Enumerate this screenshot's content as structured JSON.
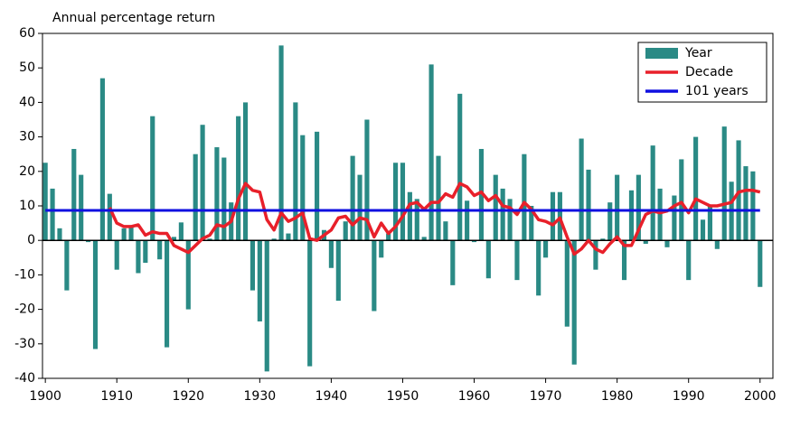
{
  "chart_data": {
    "type": "bar_line",
    "ylabel": "Annual percentage return",
    "x": [
      1900,
      1901,
      1902,
      1903,
      1904,
      1905,
      1906,
      1907,
      1908,
      1909,
      1910,
      1911,
      1912,
      1913,
      1914,
      1915,
      1916,
      1917,
      1918,
      1919,
      1920,
      1921,
      1922,
      1923,
      1924,
      1925,
      1926,
      1927,
      1928,
      1929,
      1930,
      1931,
      1932,
      1933,
      1934,
      1935,
      1936,
      1937,
      1938,
      1939,
      1940,
      1941,
      1942,
      1943,
      1944,
      1945,
      1946,
      1947,
      1948,
      1949,
      1950,
      1951,
      1952,
      1953,
      1954,
      1955,
      1956,
      1957,
      1958,
      1959,
      1960,
      1961,
      1962,
      1963,
      1964,
      1965,
      1966,
      1967,
      1968,
      1969,
      1970,
      1971,
      1972,
      1973,
      1974,
      1975,
      1976,
      1977,
      1978,
      1979,
      1980,
      1981,
      1982,
      1983,
      1984,
      1985,
      1986,
      1987,
      1988,
      1989,
      1990,
      1991,
      1992,
      1993,
      1994,
      1995,
      1996,
      1997,
      1998,
      1999,
      2000
    ],
    "series": [
      {
        "name": "Year",
        "kind": "bar",
        "color": "#2a8a85",
        "values": [
          22.5,
          15,
          3.5,
          -14.5,
          26.5,
          19,
          -0.5,
          -31.5,
          47,
          13.5,
          -8.5,
          3.5,
          4,
          -9.5,
          -6.5,
          36,
          -5.5,
          -31,
          1,
          5.2,
          -20,
          25,
          33.5,
          0.5,
          27,
          24,
          11,
          36,
          40,
          -14.5,
          -23.5,
          -38,
          0.5,
          56.5,
          2,
          40,
          30.5,
          -36.5,
          31.5,
          3,
          -8,
          -17.5,
          5.5,
          24.5,
          19,
          35,
          -20.5,
          -5,
          2,
          22.5,
          22.5,
          14,
          12,
          1,
          51,
          24.5,
          5.5,
          -13,
          42.5,
          11.5,
          -0.5,
          26.5,
          -11,
          19,
          15,
          12,
          -11.5,
          25,
          10,
          -16,
          -5,
          14,
          14,
          -25,
          -36,
          29.5,
          20.5,
          -8.5,
          0.5,
          11,
          19,
          -11.5,
          14.5,
          19,
          -1,
          27.5,
          15,
          -2,
          13,
          23.5,
          -11.5,
          30,
          6,
          10,
          -2.5,
          33,
          17,
          29,
          21.5,
          20,
          -13.5
        ]
      },
      {
        "name": "Decade",
        "kind": "line",
        "color": "#e8202a",
        "values": [
          null,
          null,
          null,
          null,
          null,
          null,
          null,
          null,
          null,
          9.5,
          5,
          4,
          4,
          4.5,
          1.5,
          2.5,
          2,
          2,
          -1.5,
          -2.5,
          -3.5,
          -1.5,
          0.5,
          1.5,
          4.5,
          4,
          5.5,
          12,
          16.5,
          14.5,
          14,
          6,
          3,
          8,
          5.5,
          6.5,
          8,
          0.5,
          0,
          1.5,
          3,
          6.5,
          7,
          4.5,
          6.5,
          6,
          1,
          5,
          2,
          4,
          7,
          10.5,
          11,
          9,
          11,
          11,
          13.5,
          12.5,
          16.5,
          15.5,
          13,
          14,
          11.5,
          13,
          10,
          9.5,
          7.5,
          11,
          9,
          6,
          5.5,
          4.5,
          6.5,
          1,
          -4,
          -2.5,
          0,
          -2.5,
          -3.5,
          -1,
          1,
          -1.5,
          -1.5,
          3,
          7.5,
          8.5,
          8,
          8.5,
          10,
          11,
          8,
          12,
          11,
          10,
          10,
          10.5,
          11,
          14,
          14.5,
          14.5,
          14
        ]
      },
      {
        "name": "101 years",
        "kind": "line",
        "color": "#1010e0",
        "values": [
          8.7,
          8.7,
          8.7,
          8.7,
          8.7,
          8.7,
          8.7,
          8.7,
          8.7,
          8.7,
          8.7,
          8.7,
          8.7,
          8.7,
          8.7,
          8.7,
          8.7,
          8.7,
          8.7,
          8.7,
          8.7,
          8.7,
          8.7,
          8.7,
          8.7,
          8.7,
          8.7,
          8.7,
          8.7,
          8.7,
          8.7,
          8.7,
          8.7,
          8.7,
          8.7,
          8.7,
          8.7,
          8.7,
          8.7,
          8.7,
          8.7,
          8.7,
          8.7,
          8.7,
          8.7,
          8.7,
          8.7,
          8.7,
          8.7,
          8.7,
          8.7,
          8.7,
          8.7,
          8.7,
          8.7,
          8.7,
          8.7,
          8.7,
          8.7,
          8.7,
          8.7,
          8.7,
          8.7,
          8.7,
          8.7,
          8.7,
          8.7,
          8.7,
          8.7,
          8.7,
          8.7,
          8.7,
          8.7,
          8.7,
          8.7,
          8.7,
          8.7,
          8.7,
          8.7,
          8.7,
          8.7,
          8.7,
          8.7,
          8.7,
          8.7,
          8.7,
          8.7,
          8.7,
          8.7,
          8.7,
          8.7,
          8.7,
          8.7,
          8.7,
          8.7,
          8.7,
          8.7,
          8.7,
          8.7,
          8.7,
          8.7
        ]
      }
    ],
    "xlim": [
      1899.6,
      2001.8
    ],
    "xticks": [
      1900,
      1910,
      1920,
      1930,
      1940,
      1950,
      1960,
      1970,
      1980,
      1990,
      2000
    ],
    "ylim": [
      -40,
      60
    ],
    "yticks": [
      -40,
      -30,
      -20,
      -10,
      0,
      10,
      20,
      30,
      40,
      50,
      60
    ],
    "grid": false,
    "legend": "upper right"
  }
}
